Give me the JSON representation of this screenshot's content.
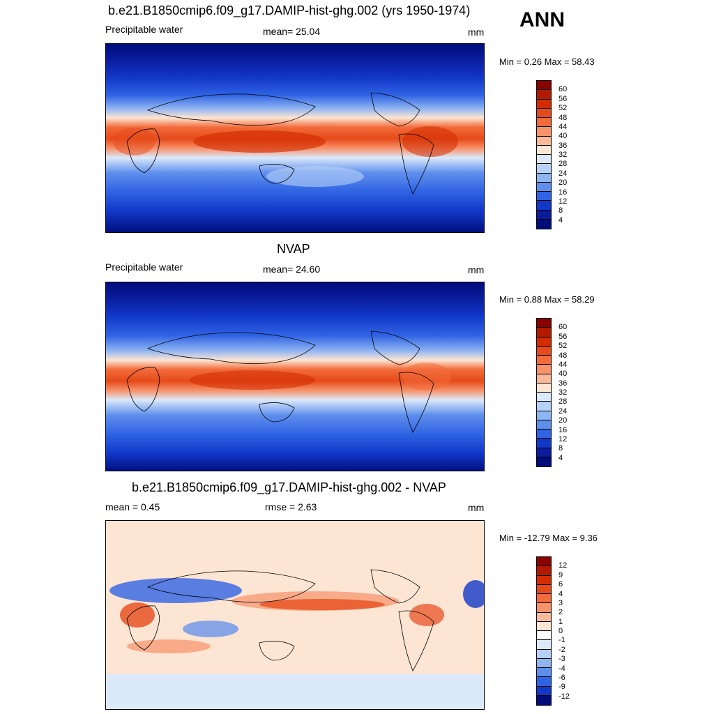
{
  "season": "ANN",
  "panels": [
    {
      "title": "b.e21.B1850cmip6.f09_g17.DAMIP-hist-ghg.002 (yrs 1950-1974)",
      "left_label": "Precipitable water",
      "center_label": "mean=  25.04",
      "units": "mm",
      "minmax": "Min =    0.26 Max =   58.43",
      "colorbar": {
        "labels": [
          "60",
          "56",
          "52",
          "48",
          "44",
          "40",
          "36",
          "32",
          "28",
          "24",
          "20",
          "16",
          "12",
          "8",
          "4"
        ],
        "colors": [
          "#8b0000",
          "#b21a00",
          "#d22c00",
          "#e64a1a",
          "#f26b3a",
          "#f7926a",
          "#fbb999",
          "#fde5d3",
          "#dbe9fb",
          "#b5d1f7",
          "#8fb4f2",
          "#5f8fec",
          "#2f63e3",
          "#1238c9",
          "#0a1c9c",
          "#000c7a"
        ]
      }
    },
    {
      "title": "NVAP",
      "left_label": "Precipitable water",
      "center_label": "mean=  24.60",
      "units": "mm",
      "minmax": "Min =    0.88 Max =   58.29",
      "colorbar": {
        "labels": [
          "60",
          "56",
          "52",
          "48",
          "44",
          "40",
          "36",
          "32",
          "28",
          "24",
          "20",
          "16",
          "12",
          "8",
          "4"
        ],
        "colors": [
          "#8b0000",
          "#b21a00",
          "#d22c00",
          "#e64a1a",
          "#f26b3a",
          "#f7926a",
          "#fbb999",
          "#fde5d3",
          "#dbe9fb",
          "#b5d1f7",
          "#8fb4f2",
          "#5f8fec",
          "#2f63e3",
          "#1238c9",
          "#0a1c9c",
          "#000c7a"
        ]
      }
    },
    {
      "title": "b.e21.B1850cmip6.f09_g17.DAMIP-hist-ghg.002 - NVAP",
      "left_label": "mean =    0.45",
      "center_label": "rmse =    2.63",
      "units": "mm",
      "minmax": "Min = -12.79 Max =    9.36",
      "colorbar": {
        "labels": [
          "12",
          "9",
          "6",
          "4",
          "3",
          "2",
          "1",
          "0",
          "-1",
          "-2",
          "-3",
          "-4",
          "-6",
          "-9",
          "-12"
        ],
        "colors": [
          "#8b0000",
          "#b21a00",
          "#d22c00",
          "#e64a1a",
          "#f26b3a",
          "#f7926a",
          "#fbb999",
          "#fde5d3",
          "#ffffff",
          "#dbe9fb",
          "#b5d1f7",
          "#8fb4f2",
          "#5f8fec",
          "#2f63e3",
          "#1238c9",
          "#000c7a"
        ]
      }
    }
  ]
}
